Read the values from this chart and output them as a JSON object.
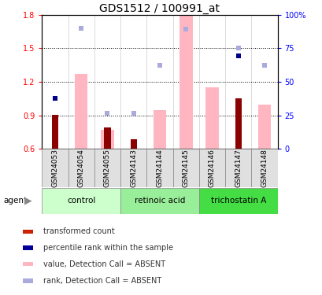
{
  "title": "GDS1512 / 100991_at",
  "samples": [
    "GSM24053",
    "GSM24054",
    "GSM24055",
    "GSM24143",
    "GSM24144",
    "GSM24145",
    "GSM24146",
    "GSM24147",
    "GSM24148"
  ],
  "transformed_count": [
    0.905,
    null,
    0.795,
    0.685,
    null,
    null,
    null,
    1.05,
    null
  ],
  "percentile_rank": [
    1.05,
    null,
    null,
    null,
    null,
    null,
    null,
    1.43,
    null
  ],
  "value_absent": [
    null,
    1.27,
    0.77,
    null,
    0.95,
    1.8,
    1.15,
    null,
    1.0
  ],
  "rank_absent": [
    null,
    1.68,
    0.92,
    0.92,
    1.35,
    1.67,
    null,
    1.5,
    1.35
  ],
  "ylim_left": [
    0.6,
    1.8
  ],
  "ylim_right": [
    0,
    100
  ],
  "yticks_left": [
    0.6,
    0.9,
    1.2,
    1.5,
    1.8
  ],
  "yticks_right": [
    0,
    25,
    50,
    75,
    100
  ],
  "ytick_labels_right": [
    "0",
    "25",
    "50",
    "75",
    "100%"
  ],
  "color_transformed": "#8B0000",
  "color_percentile": "#00008B",
  "color_value_absent": "#FFB6C1",
  "color_rank_absent": "#AAAADD",
  "groups_info": [
    {
      "start": 0,
      "end": 2,
      "label": "control",
      "color": "#ccffcc"
    },
    {
      "start": 3,
      "end": 5,
      "label": "retinoic acid",
      "color": "#99ee99"
    },
    {
      "start": 6,
      "end": 8,
      "label": "trichostatin A",
      "color": "#44dd44"
    }
  ],
  "legend_items": [
    {
      "color": "#CC2200",
      "label": "transformed count"
    },
    {
      "color": "#000099",
      "label": "percentile rank within the sample"
    },
    {
      "color": "#FFB6C1",
      "label": "value, Detection Call = ABSENT"
    },
    {
      "color": "#AAAADD",
      "label": "rank, Detection Call = ABSENT"
    }
  ]
}
